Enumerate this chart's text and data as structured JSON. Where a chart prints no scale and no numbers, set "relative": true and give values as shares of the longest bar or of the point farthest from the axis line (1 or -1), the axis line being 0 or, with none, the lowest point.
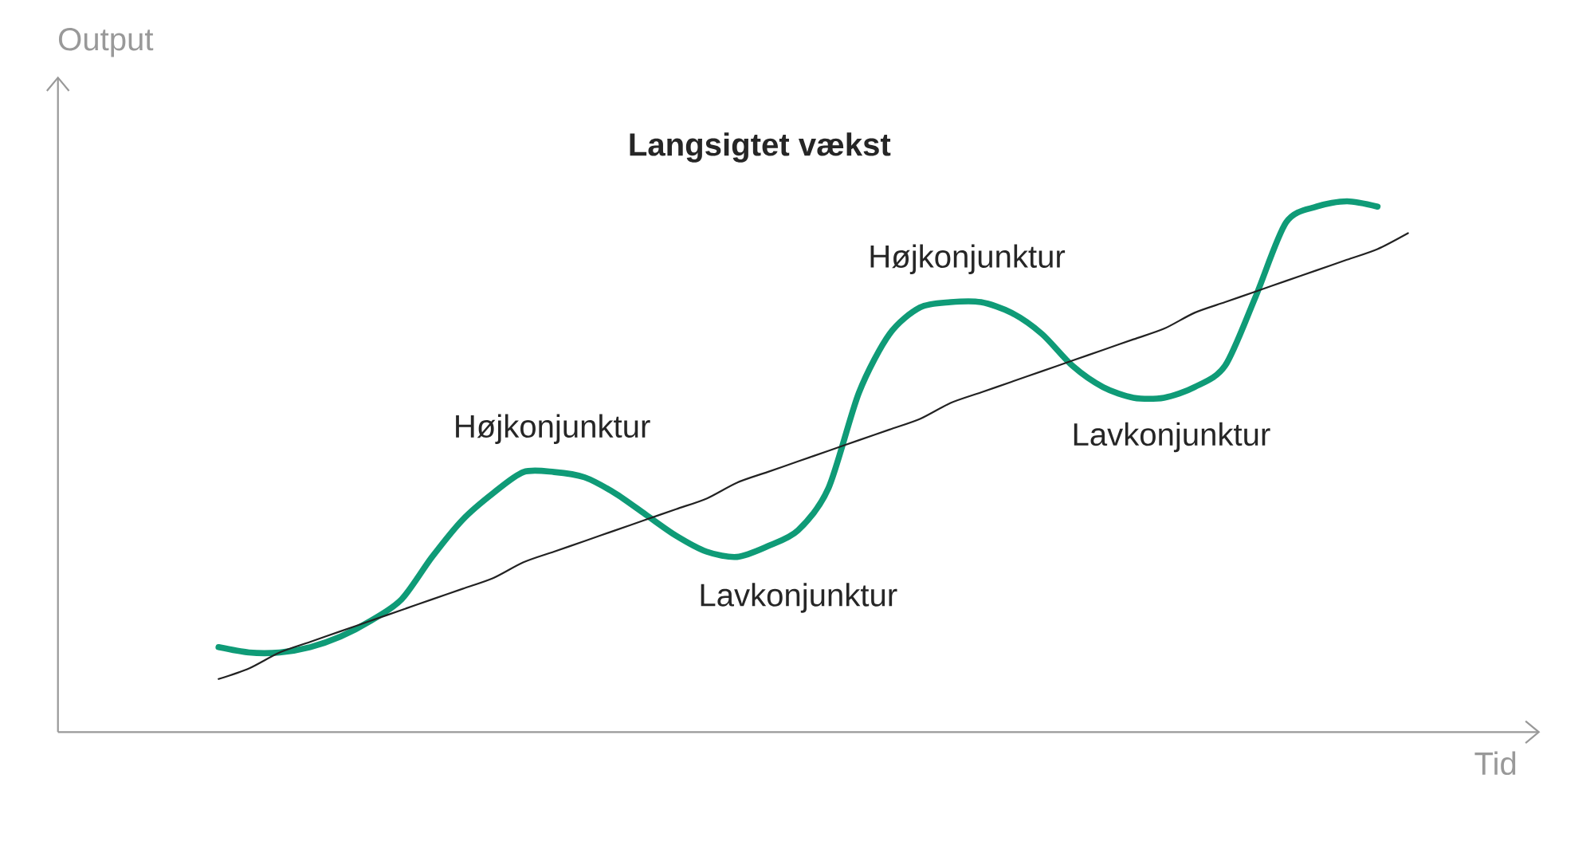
{
  "chart_data": {
    "type": "line",
    "relative": true,
    "title": "Langsigtet vækst",
    "xlabel": "Tid",
    "ylabel": "Output",
    "categories": [
      null,
      null,
      null,
      null,
      null,
      null,
      null,
      null,
      null,
      null,
      null,
      null,
      null,
      null,
      null,
      null,
      null,
      null,
      null,
      null,
      null,
      null,
      null,
      null,
      null,
      null,
      null,
      null,
      null,
      null,
      null,
      null,
      null,
      null,
      null,
      null,
      null,
      null,
      null,
      null
    ],
    "series": [
      {
        "color": "#0f9b77",
        "values": [
          0.16,
          0.15,
          0.15,
          0.16,
          0.18,
          0.21,
          0.25,
          0.33,
          0.4,
          0.45,
          0.49,
          0.49,
          0.48,
          0.45,
          0.41,
          0.37,
          0.34,
          0.33,
          0.35,
          0.38,
          0.46,
          0.64,
          0.75,
          0.8,
          0.81,
          0.81,
          0.79,
          0.75,
          0.69,
          0.65,
          0.63,
          0.63,
          0.65,
          0.69,
          0.82,
          0.96,
          0.99,
          1.0,
          0.99,
          null
        ]
      },
      {
        "color": "#222222",
        "values": [
          0.1,
          0.12,
          0.15,
          0.17,
          0.19,
          0.21,
          0.23,
          0.25,
          0.27,
          0.29,
          0.32,
          0.34,
          0.36,
          0.38,
          0.4,
          0.42,
          0.44,
          0.47,
          0.49,
          0.51,
          0.53,
          0.55,
          0.57,
          0.59,
          0.62,
          0.64,
          0.66,
          0.68,
          0.7,
          0.72,
          0.74,
          0.76,
          0.79,
          0.81,
          0.83,
          0.85,
          0.87,
          0.89,
          0.91,
          0.94
        ]
      }
    ],
    "annotations": [
      "Højkonjunktur",
      "Lavkonjunktur",
      "Højkonjunktur",
      "Lavkonjunktur"
    ]
  }
}
